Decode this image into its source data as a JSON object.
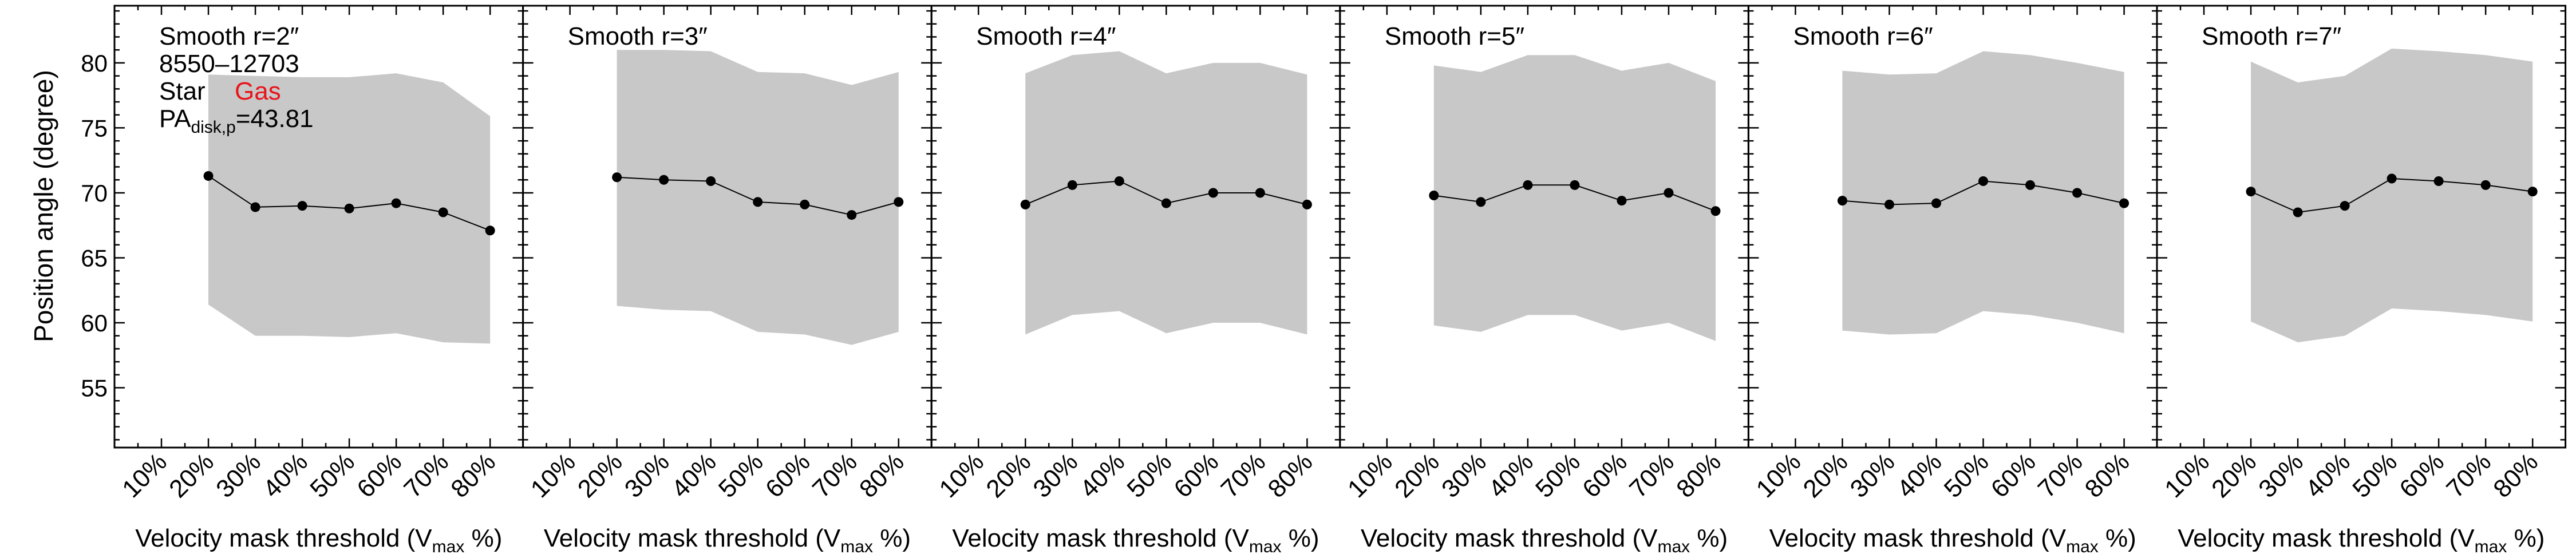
{
  "figure": {
    "ylabel": "Position angle (degree)",
    "xlabel_main": "Velocity mask threshold (V",
    "xlabel_sub": "max",
    "xlabel_tail": " %)",
    "yticks": [
      55,
      60,
      65,
      70,
      75,
      80
    ],
    "ylim": [
      50.4,
      84.4
    ],
    "xticks": [
      "10%",
      "20%",
      "30%",
      "40%",
      "50%",
      "60%",
      "70%",
      "80%"
    ],
    "xlim": [
      0.0,
      0.87
    ],
    "info": {
      "galaxy": "8550–12703",
      "star": "Star",
      "gas": "Gas",
      "pa_main": "PA",
      "pa_sub": "disk,p",
      "pa_value": "=43.81"
    },
    "colors": {
      "band": "#c8c8c8",
      "gas": "#e8141b",
      "line": "#000000"
    }
  },
  "chart_data": [
    {
      "type": "line",
      "title": "Smooth r=2″",
      "x": [
        0.2,
        0.3,
        0.4,
        0.5,
        0.6,
        0.7,
        0.8
      ],
      "values": [
        71.3,
        68.9,
        69.0,
        68.8,
        69.2,
        68.5,
        67.1
      ],
      "band_upper": [
        79.1,
        79.0,
        78.9,
        78.9,
        79.2,
        78.5,
        75.9
      ],
      "band_lower": [
        61.4,
        59.0,
        59.0,
        58.9,
        59.2,
        58.5,
        58.4
      ]
    },
    {
      "type": "line",
      "title": "Smooth r=3″",
      "x": [
        0.2,
        0.3,
        0.4,
        0.5,
        0.6,
        0.7,
        0.8
      ],
      "values": [
        71.2,
        71.0,
        70.9,
        69.3,
        69.1,
        68.3,
        69.3
      ],
      "band_upper": [
        81.0,
        81.0,
        80.9,
        79.3,
        79.2,
        78.3,
        79.3
      ],
      "band_lower": [
        61.3,
        61.0,
        60.9,
        59.3,
        59.1,
        58.3,
        59.3
      ]
    },
    {
      "type": "line",
      "title": "Smooth r=4″",
      "x": [
        0.2,
        0.3,
        0.4,
        0.5,
        0.6,
        0.7,
        0.8
      ],
      "values": [
        69.1,
        70.6,
        70.9,
        69.2,
        70.0,
        70.0,
        69.1
      ],
      "band_upper": [
        79.2,
        80.6,
        80.9,
        79.2,
        80.0,
        80.0,
        79.1
      ],
      "band_lower": [
        59.1,
        60.6,
        60.9,
        59.2,
        60.0,
        60.0,
        59.1
      ]
    },
    {
      "type": "line",
      "title": "Smooth r=5″",
      "x": [
        0.2,
        0.3,
        0.4,
        0.5,
        0.6,
        0.7,
        0.8
      ],
      "values": [
        69.8,
        69.3,
        70.6,
        70.6,
        69.4,
        70.0,
        68.6
      ],
      "band_upper": [
        79.8,
        79.3,
        80.6,
        80.6,
        79.4,
        80.0,
        78.6
      ],
      "band_lower": [
        59.8,
        59.3,
        60.6,
        60.6,
        59.4,
        60.0,
        58.6
      ]
    },
    {
      "type": "line",
      "title": "Smooth r=6″",
      "x": [
        0.2,
        0.3,
        0.4,
        0.5,
        0.6,
        0.7,
        0.8
      ],
      "values": [
        69.4,
        69.1,
        69.2,
        70.9,
        70.6,
        70.0,
        69.2
      ],
      "band_upper": [
        79.4,
        79.1,
        79.2,
        80.9,
        80.6,
        80.0,
        79.3
      ],
      "band_lower": [
        59.4,
        59.1,
        59.2,
        60.9,
        60.6,
        60.0,
        59.2
      ]
    },
    {
      "type": "line",
      "title": "Smooth r=7″",
      "x": [
        0.2,
        0.3,
        0.4,
        0.5,
        0.6,
        0.7,
        0.8
      ],
      "values": [
        70.1,
        68.5,
        69.0,
        71.1,
        70.9,
        70.6,
        70.1
      ],
      "band_upper": [
        80.1,
        78.5,
        79.0,
        81.1,
        80.9,
        80.6,
        80.1
      ],
      "band_lower": [
        60.1,
        58.5,
        59.0,
        61.1,
        60.9,
        60.6,
        60.1
      ]
    }
  ]
}
